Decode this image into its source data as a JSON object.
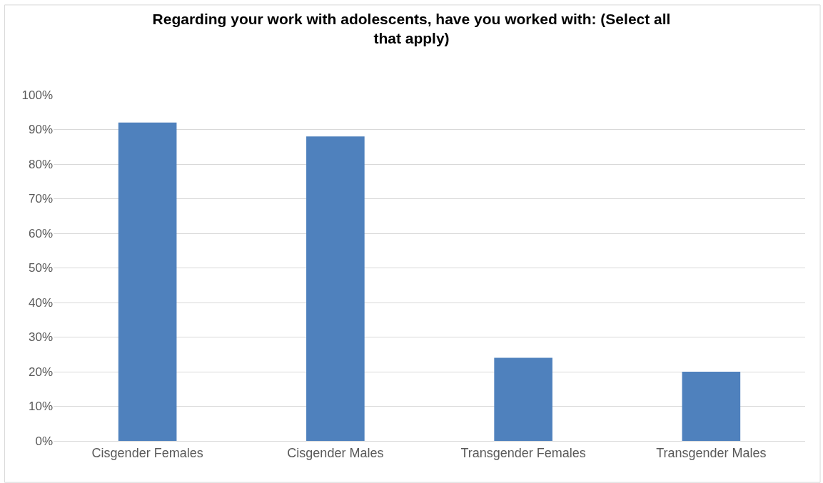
{
  "chart_data": {
    "type": "bar",
    "title": "Regarding your work with adolescents, have you worked with: (Select all that apply)",
    "categories": [
      "Cisgender Females",
      "Cisgender Males",
      "Transgender Females",
      "Transgender Males"
    ],
    "values": [
      92,
      88,
      24,
      20
    ],
    "color": "#4f81bd",
    "ylim": [
      0,
      100
    ],
    "yticks": [
      {
        "value": 0,
        "label": "0%"
      },
      {
        "value": 10,
        "label": "10%"
      },
      {
        "value": 20,
        "label": "20%"
      },
      {
        "value": 30,
        "label": "30%"
      },
      {
        "value": 40,
        "label": "40%"
      },
      {
        "value": 50,
        "label": "50%"
      },
      {
        "value": 60,
        "label": "60%"
      },
      {
        "value": 70,
        "label": "70%"
      },
      {
        "value": 80,
        "label": "80%"
      },
      {
        "value": 90,
        "label": "90%"
      },
      {
        "value": 100,
        "label": "100%"
      }
    ],
    "grid": "y"
  }
}
